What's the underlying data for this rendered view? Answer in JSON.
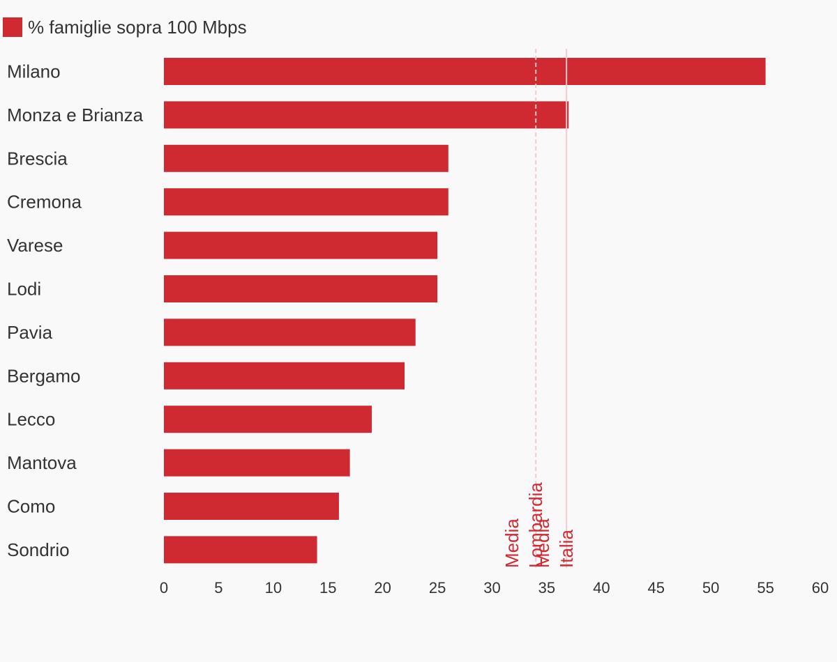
{
  "legend": {
    "label": "% famiglie sopra 100 Mbps",
    "color": "#cf2a32"
  },
  "chart_data": {
    "type": "bar",
    "orientation": "horizontal",
    "categories": [
      "Milano",
      "Monza e Brianza",
      "Brescia",
      "Cremona",
      "Varese",
      "Lodi",
      "Pavia",
      "Bergamo",
      "Lecco",
      "Mantova",
      "Como",
      "Sondrio"
    ],
    "series": [
      {
        "name": "% famiglie sopra 100 Mbps",
        "values": [
          55,
          37,
          26,
          26,
          25,
          25,
          23,
          22,
          19,
          17,
          16,
          14
        ]
      }
    ],
    "xlim": [
      0,
      60
    ],
    "xticks": [
      0,
      5,
      10,
      15,
      20,
      25,
      30,
      35,
      40,
      45,
      50,
      55,
      60
    ],
    "grid": false,
    "legend_position": "top-left",
    "reference_lines": [
      {
        "label": [
          "Media",
          "Lombardia"
        ],
        "value": 34.0,
        "style": "dashed"
      },
      {
        "label": [
          "Media",
          "Italia"
        ],
        "value": 36.8,
        "style": "solid"
      }
    ],
    "colors": {
      "bar": "#cf2a32",
      "reference_line": "#f6c9cb",
      "reference_text": "#cf2a32",
      "axis_text": "#333333",
      "background": "#f9f9f9"
    }
  }
}
